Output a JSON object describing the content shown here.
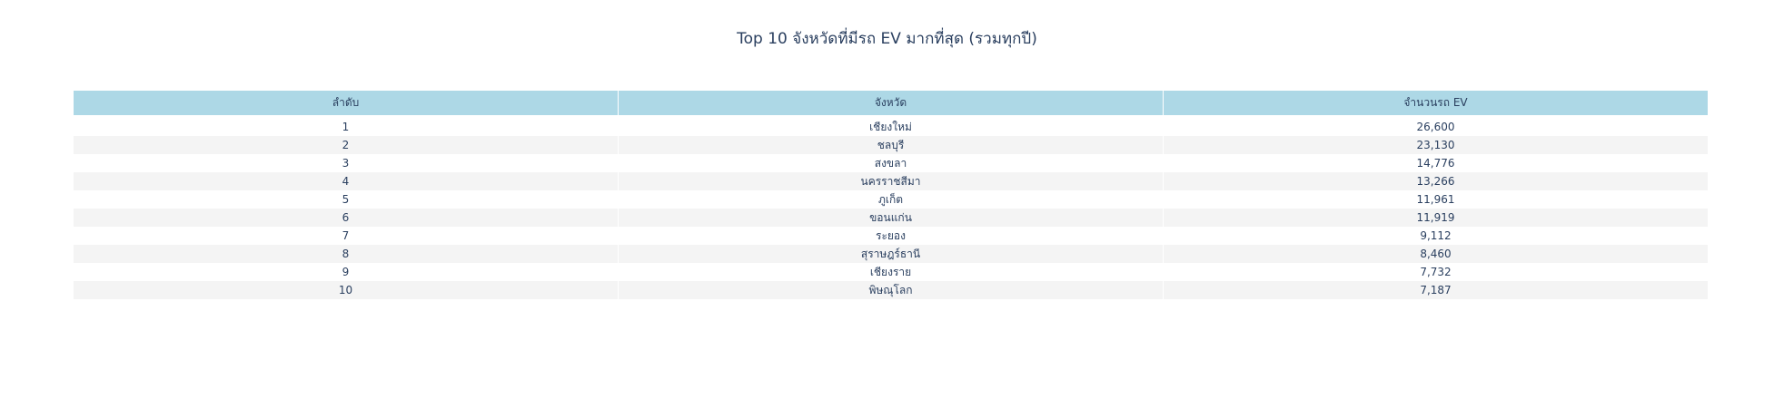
{
  "chart_data": {
    "type": "table",
    "title": "Top 10 จังหวัดที่มีรถ EV มากที่สุด (รวมทุกปี)",
    "columns": [
      "ลำดับ",
      "จังหวัด",
      "จำนวนรถ EV"
    ],
    "rows": [
      {
        "rank": "1",
        "province": "เชียงใหม่",
        "count": "26,600"
      },
      {
        "rank": "2",
        "province": "ชลบุรี",
        "count": "23,130"
      },
      {
        "rank": "3",
        "province": "สงขลา",
        "count": "14,776"
      },
      {
        "rank": "4",
        "province": "นครราชสีมา",
        "count": "13,266"
      },
      {
        "rank": "5",
        "province": "ภูเก็ต",
        "count": "11,961"
      },
      {
        "rank": "6",
        "province": "ขอนแก่น",
        "count": "11,919"
      },
      {
        "rank": "7",
        "province": "ระยอง",
        "count": "9,112"
      },
      {
        "rank": "8",
        "province": "สุราษฎร์ธานี",
        "count": "8,460"
      },
      {
        "rank": "9",
        "province": "เชียงราย",
        "count": "7,732"
      },
      {
        "rank": "10",
        "province": "พิษณุโลก",
        "count": "7,187"
      }
    ],
    "colors": {
      "header_fill": "#add8e6",
      "row_odd_fill": "#ffffff",
      "row_even_fill": "#f4f4f4",
      "text": "#2a3f5f"
    }
  }
}
